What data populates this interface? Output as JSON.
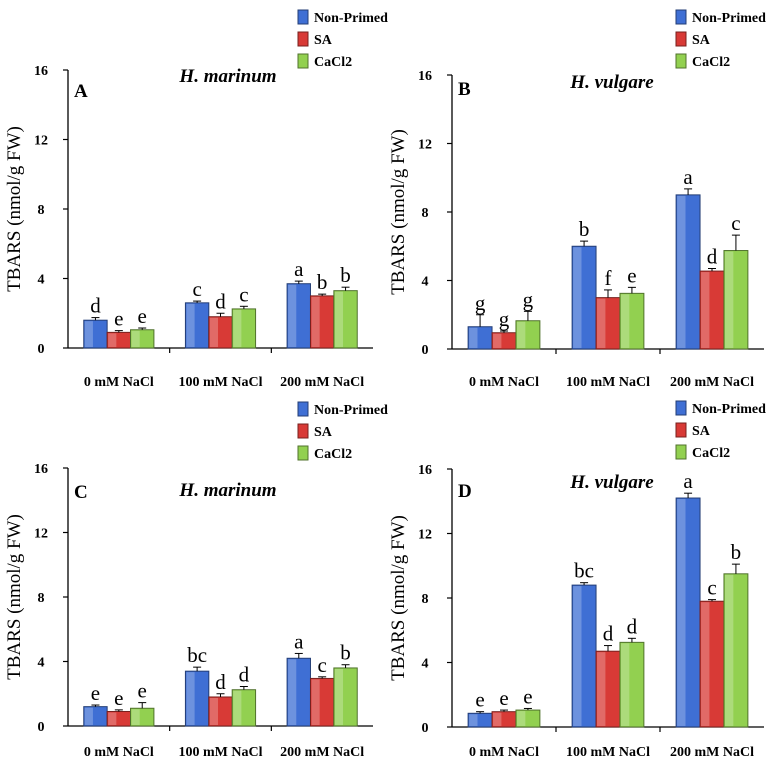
{
  "chart_data": [
    {
      "type": "bar",
      "panel_label": "A",
      "species": "H. marinum",
      "ylabel": "TBARS (nmol/g FW)",
      "ylim": [
        0,
        16
      ],
      "yticks": [
        "0",
        "4",
        "8",
        "12",
        "16"
      ],
      "categories": [
        "0 mM NaCl",
        "100 mM NaCl",
        "200 mM NaCl"
      ],
      "legend_position": "top-right",
      "series": [
        {
          "name": "Non-Primed",
          "color": "#3f6fd4",
          "values": [
            1.6,
            2.6,
            3.7
          ],
          "errors": [
            0.15,
            0.1,
            0.15
          ],
          "letters": [
            "d",
            "c",
            "a"
          ]
        },
        {
          "name": "SA",
          "color": "#d83a36",
          "values": [
            0.9,
            1.8,
            3.0
          ],
          "errors": [
            0.1,
            0.2,
            0.1
          ],
          "letters": [
            "e",
            "d",
            "b"
          ]
        },
        {
          "name": "CaCl2",
          "color": "#92d050",
          "values": [
            1.05,
            2.25,
            3.3
          ],
          "errors": [
            0.1,
            0.15,
            0.2
          ],
          "letters": [
            "e",
            "c",
            "b"
          ]
        }
      ]
    },
    {
      "type": "bar",
      "panel_label": "B",
      "species": "H. vulgare",
      "ylabel": "TBARS (nmol/g FW)",
      "ylim": [
        0,
        16
      ],
      "yticks": [
        "0",
        "4",
        "8",
        "12",
        "16"
      ],
      "categories": [
        "0 mM NaCl",
        "100 mM NaCl",
        "200 mM NaCl"
      ],
      "legend_position": "top-right",
      "series": [
        {
          "name": "Non-Primed",
          "color": "#3f6fd4",
          "values": [
            1.3,
            6.0,
            9.0
          ],
          "errors": [
            0.7,
            0.3,
            0.35
          ],
          "letters": [
            "g",
            "b",
            "a"
          ]
        },
        {
          "name": "SA",
          "color": "#d83a36",
          "values": [
            0.95,
            3.0,
            4.55
          ],
          "errors": [
            0.1,
            0.45,
            0.15
          ],
          "letters": [
            "g",
            "f",
            "d"
          ]
        },
        {
          "name": "CaCl2",
          "color": "#92d050",
          "values": [
            1.65,
            3.25,
            5.75
          ],
          "errors": [
            0.55,
            0.35,
            0.9
          ],
          "letters": [
            "g",
            "e",
            "c"
          ]
        }
      ]
    },
    {
      "type": "bar",
      "panel_label": "C",
      "species": "H. marinum",
      "ylabel": "TBARS (nmol/g FW)",
      "ylim": [
        0,
        16
      ],
      "yticks": [
        "0",
        "4",
        "8",
        "12",
        "16"
      ],
      "categories": [
        "0 mM NaCl",
        "100 mM NaCl",
        "200 mM NaCl"
      ],
      "legend_position": "top-right",
      "series": [
        {
          "name": "Non-Primed",
          "color": "#3f6fd4",
          "values": [
            1.2,
            3.4,
            4.2
          ],
          "errors": [
            0.1,
            0.25,
            0.3
          ],
          "letters": [
            "e",
            "bc",
            "a"
          ]
        },
        {
          "name": "SA",
          "color": "#d83a36",
          "values": [
            0.9,
            1.8,
            2.95
          ],
          "errors": [
            0.1,
            0.2,
            0.1
          ],
          "letters": [
            "e",
            "d",
            "c"
          ]
        },
        {
          "name": "CaCl2",
          "color": "#92d050",
          "values": [
            1.1,
            2.25,
            3.6
          ],
          "errors": [
            0.35,
            0.2,
            0.2
          ],
          "letters": [
            "e",
            "d",
            "b"
          ]
        }
      ]
    },
    {
      "type": "bar",
      "panel_label": "D",
      "species": "H. vulgare",
      "ylabel": "TBARS (nmol/g FW)",
      "ylim": [
        0,
        16
      ],
      "yticks": [
        "0",
        "4",
        "8",
        "12",
        "16"
      ],
      "categories": [
        "0 mM NaCl",
        "100 mM NaCl",
        "200 mM NaCl"
      ],
      "legend_position": "top-right",
      "series": [
        {
          "name": "Non-Primed",
          "color": "#3f6fd4",
          "values": [
            0.85,
            8.8,
            14.2
          ],
          "errors": [
            0.1,
            0.15,
            0.3
          ],
          "letters": [
            "e",
            "bc",
            "a"
          ]
        },
        {
          "name": "SA",
          "color": "#d83a36",
          "values": [
            0.95,
            4.7,
            7.8
          ],
          "errors": [
            0.1,
            0.35,
            0.1
          ],
          "letters": [
            "e",
            "d",
            "c"
          ]
        },
        {
          "name": "CaCl2",
          "color": "#92d050",
          "values": [
            1.05,
            5.25,
            9.5
          ],
          "errors": [
            0.1,
            0.25,
            0.6
          ],
          "letters": [
            "e",
            "d",
            "b"
          ]
        }
      ]
    }
  ]
}
